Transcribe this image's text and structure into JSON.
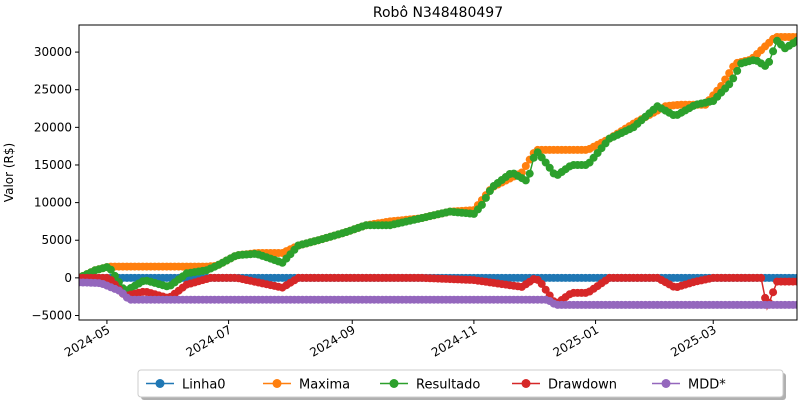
{
  "chart_data": {
    "type": "line",
    "title": "Robô N348480497",
    "xlabel": "",
    "ylabel": "Valor (R$)",
    "xlim": [
      "2024-04-17",
      "2025-04-12"
    ],
    "ylim": [
      -5600,
      33600
    ],
    "x_ticks": [
      "2024-05",
      "2024-07",
      "2024-09",
      "2024-11",
      "2025-01",
      "2025-03"
    ],
    "y_ticks": [
      -5000,
      0,
      5000,
      10000,
      15000,
      20000,
      25000,
      30000
    ],
    "grid": false,
    "legend_position": "bottom-center",
    "series": [
      {
        "name": "Linha0",
        "color": "#1f77b4",
        "x": [
          "2024-04-17",
          "2025-04-12"
        ],
        "y": [
          0,
          0
        ]
      },
      {
        "name": "Maxima",
        "color": "#ff7f0e",
        "x": [
          "2024-04-17",
          "2024-04-25",
          "2024-05-02",
          "2024-06-20",
          "2024-06-25",
          "2024-07-05",
          "2024-07-15",
          "2024-07-28",
          "2024-08-05",
          "2024-08-15",
          "2024-08-28",
          "2024-09-08",
          "2024-09-20",
          "2024-10-05",
          "2024-10-20",
          "2024-11-01",
          "2024-11-10",
          "2024-11-25",
          "2024-12-02",
          "2024-12-28",
          "2025-01-08",
          "2025-01-20",
          "2025-02-05",
          "2025-02-12",
          "2025-02-25",
          "2025-03-05",
          "2025-03-12",
          "2025-03-20",
          "2025-04-01",
          "2025-04-12"
        ],
        "y": [
          0,
          1000,
          1500,
          1500,
          1600,
          3000,
          3300,
          3300,
          4300,
          5000,
          6000,
          7000,
          7500,
          7900,
          8800,
          9000,
          12000,
          14000,
          17000,
          17000,
          18500,
          20500,
          22800,
          23000,
          23000,
          25500,
          28500,
          29000,
          32000,
          32000
        ]
      },
      {
        "name": "Resultado",
        "color": "#2ca02c",
        "x": [
          "2024-04-17",
          "2024-04-25",
          "2024-05-02",
          "2024-05-10",
          "2024-05-20",
          "2024-06-01",
          "2024-06-10",
          "2024-06-20",
          "2024-06-25",
          "2024-07-05",
          "2024-07-15",
          "2024-07-28",
          "2024-08-05",
          "2024-08-15",
          "2024-08-28",
          "2024-09-08",
          "2024-09-20",
          "2024-10-05",
          "2024-10-20",
          "2024-11-01",
          "2024-11-05",
          "2024-11-10",
          "2024-11-20",
          "2024-11-28",
          "2024-12-02",
          "2024-12-08",
          "2024-12-12",
          "2024-12-20",
          "2024-12-28",
          "2025-01-08",
          "2025-01-20",
          "2025-02-01",
          "2025-02-10",
          "2025-02-20",
          "2025-03-01",
          "2025-03-10",
          "2025-03-15",
          "2025-03-22",
          "2025-03-28",
          "2025-04-02",
          "2025-04-06",
          "2025-04-12"
        ],
        "y": [
          0,
          1000,
          1500,
          -1800,
          -300,
          -1200,
          600,
          1000,
          1600,
          3000,
          3200,
          2000,
          4300,
          5000,
          6000,
          7000,
          7000,
          7900,
          8800,
          8500,
          9700,
          12000,
          14000,
          12800,
          17000,
          15000,
          13500,
          15000,
          15000,
          18500,
          20000,
          22800,
          21500,
          23000,
          23500,
          26000,
          28500,
          29000,
          28000,
          31500,
          30500,
          31500
        ]
      },
      {
        "name": "Drawdown",
        "color": "#d62728",
        "x": [
          "2024-04-17",
          "2024-05-02",
          "2024-05-10",
          "2024-05-20",
          "2024-06-01",
          "2024-06-10",
          "2024-06-22",
          "2024-07-05",
          "2024-07-28",
          "2024-08-05",
          "2024-09-05",
          "2024-10-05",
          "2024-11-01",
          "2024-11-25",
          "2024-12-02",
          "2024-12-05",
          "2024-12-12",
          "2024-12-20",
          "2024-12-28",
          "2025-01-08",
          "2025-02-01",
          "2025-02-10",
          "2025-02-20",
          "2025-03-01",
          "2025-03-25",
          "2025-03-28",
          "2025-04-02",
          "2025-04-12"
        ],
        "y": [
          0,
          0,
          -2400,
          -1800,
          -2700,
          -900,
          0,
          0,
          -1300,
          0,
          0,
          0,
          -300,
          -1200,
          0,
          -800,
          -3500,
          -2000,
          -2000,
          0,
          0,
          -1300,
          -500,
          0,
          0,
          -4000,
          -500,
          -500
        ]
      },
      {
        "name": "MDD*",
        "color": "#9467bd",
        "x": [
          "2024-04-17",
          "2024-04-28",
          "2024-05-08",
          "2024-05-12",
          "2024-12-08",
          "2024-12-12",
          "2025-04-12"
        ],
        "y": [
          -600,
          -700,
          -1800,
          -2900,
          -2900,
          -3600,
          -3600
        ]
      }
    ]
  }
}
